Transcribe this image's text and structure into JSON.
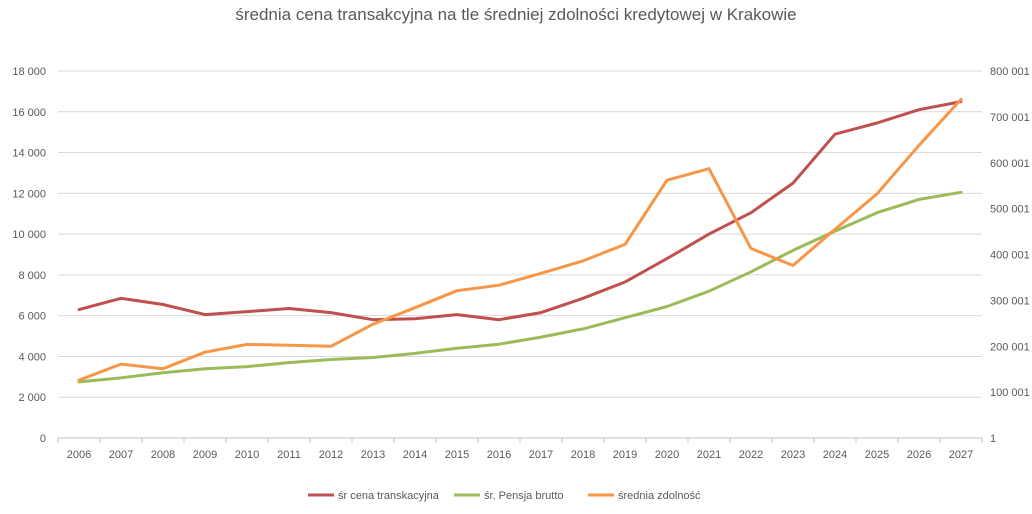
{
  "chart_data": {
    "type": "line",
    "title": "średnia cena transakcyjna na tle średniej zdolności kredytowej w Krakowie",
    "categories": [
      "2006",
      "2007",
      "2008",
      "2009",
      "2010",
      "2011",
      "2012",
      "2013",
      "2014",
      "2015",
      "2016",
      "2017",
      "2018",
      "2019",
      "2020",
      "2021",
      "2022",
      "2023",
      "2024",
      "2025",
      "2026",
      "2027"
    ],
    "y_left": {
      "ylim": [
        0,
        18000
      ],
      "ticks": [
        0,
        2000,
        4000,
        6000,
        8000,
        10000,
        12000,
        14000,
        16000,
        18000
      ],
      "tick_labels": [
        "0",
        "2 000",
        "4 000",
        "6 000",
        "8 000",
        "10 000",
        "12 000",
        "14 000",
        "16 000",
        "18 000"
      ]
    },
    "y_right": {
      "ylim": [
        1,
        800001
      ],
      "ticks": [
        1,
        100001,
        200001,
        300001,
        400001,
        500001,
        600001,
        700001,
        800001
      ],
      "tick_labels": [
        "1",
        "100 001",
        "200 001",
        "300 001",
        "400 001",
        "500 001",
        "600 001",
        "700 001",
        "800 001"
      ]
    },
    "series": [
      {
        "name": "śr cena transkacyjna",
        "axis": "left",
        "color": "#c0504d",
        "values": [
          6300,
          6850,
          6550,
          6050,
          6200,
          6350,
          6150,
          5800,
          5850,
          6050,
          5800,
          6150,
          6850,
          7650,
          8800,
          10000,
          11050,
          12500,
          14900,
          15450,
          16100,
          16500
        ]
      },
      {
        "name": "śr. Pensja brutto",
        "axis": "left",
        "color": "#9bbb59",
        "values": [
          2750,
          2950,
          3200,
          3400,
          3500,
          3700,
          3850,
          3950,
          4150,
          4400,
          4600,
          4950,
          5350,
          5900,
          6450,
          7200,
          8150,
          9200,
          10150,
          11050,
          11700,
          12050
        ]
      },
      {
        "name": "średnia zdolność",
        "axis": "right",
        "color": "#f79646",
        "values": [
          126000,
          161000,
          151000,
          187000,
          204000,
          202000,
          200000,
          248000,
          284000,
          321000,
          333000,
          359000,
          386000,
          422000,
          562000,
          587000,
          413000,
          376000,
          455000,
          532000,
          638000,
          738000
        ]
      }
    ],
    "legend": "bottom",
    "grid": true
  }
}
